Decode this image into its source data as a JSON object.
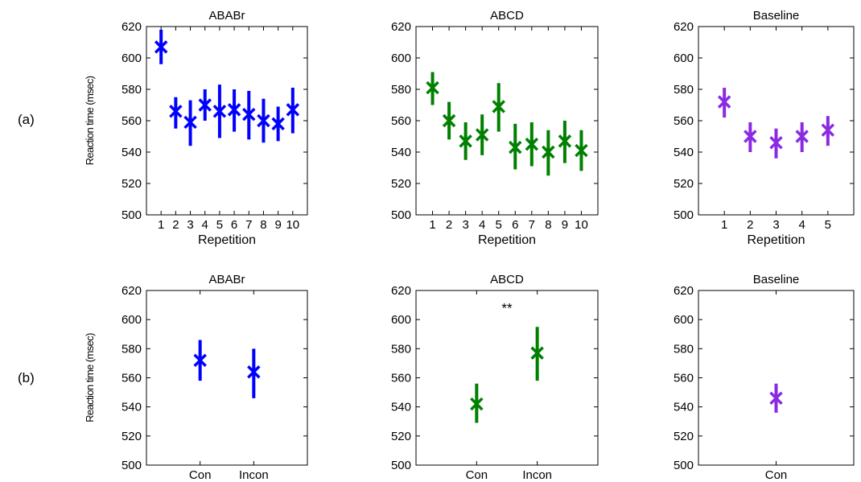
{
  "row_labels": [
    "(a)",
    "(b)"
  ],
  "colors": {
    "ABABr": "#0000ff",
    "ABCD": "#008000",
    "Baseline": "#8a2be2"
  },
  "chart_data": [
    {
      "type": "scatter",
      "title": "ABABr",
      "xlabel": "Repetition",
      "ylabel": "Reaction time (msec)",
      "ylim": [
        500,
        620
      ],
      "yticks": [
        500,
        520,
        540,
        560,
        580,
        600,
        620
      ],
      "xlim": [
        0,
        11
      ],
      "categories": [
        "1",
        "2",
        "3",
        "4",
        "5",
        "6",
        "7",
        "8",
        "9",
        "10"
      ],
      "x": [
        1,
        2,
        3,
        4,
        5,
        6,
        7,
        8,
        9,
        10
      ],
      "series": [
        {
          "values": [
            607,
            566,
            559,
            570,
            566,
            567,
            564,
            560,
            558,
            567
          ],
          "lower": [
            596,
            555,
            544,
            560,
            549,
            553,
            548,
            546,
            547,
            552
          ],
          "upper": [
            618,
            575,
            573,
            580,
            583,
            580,
            579,
            574,
            569,
            581
          ]
        }
      ],
      "color": "#0000ff",
      "marker": "asterisk",
      "grid": false
    },
    {
      "type": "scatter",
      "title": "ABCD",
      "xlabel": "Repetition",
      "ylabel": "",
      "ylim": [
        500,
        620
      ],
      "yticks": [
        500,
        520,
        540,
        560,
        580,
        600,
        620
      ],
      "xlim": [
        0,
        11
      ],
      "categories": [
        "1",
        "2",
        "3",
        "4",
        "5",
        "6",
        "7",
        "8",
        "9",
        "10"
      ],
      "x": [
        1,
        2,
        3,
        4,
        5,
        6,
        7,
        8,
        9,
        10
      ],
      "series": [
        {
          "values": [
            581,
            560,
            547,
            551,
            569,
            543,
            545,
            540,
            547,
            541
          ],
          "lower": [
            570,
            548,
            535,
            538,
            553,
            529,
            531,
            525,
            533,
            528
          ],
          "upper": [
            591,
            572,
            559,
            564,
            584,
            558,
            559,
            554,
            560,
            554
          ]
        }
      ],
      "color": "#008000",
      "marker": "asterisk",
      "grid": false
    },
    {
      "type": "scatter",
      "title": "Baseline",
      "xlabel": "Repetition",
      "ylabel": "",
      "ylim": [
        500,
        620
      ],
      "yticks": [
        500,
        520,
        540,
        560,
        580,
        600,
        620
      ],
      "xlim": [
        0,
        6
      ],
      "categories": [
        "1",
        "2",
        "3",
        "4",
        "5"
      ],
      "x": [
        1,
        2,
        3,
        4,
        5
      ],
      "series": [
        {
          "values": [
            572,
            550,
            546,
            550,
            554
          ],
          "lower": [
            562,
            540,
            536,
            540,
            544
          ],
          "upper": [
            581,
            559,
            555,
            559,
            563
          ]
        }
      ],
      "color": "#8a2be2",
      "marker": "asterisk",
      "grid": false
    },
    {
      "type": "scatter",
      "title": "ABABr",
      "xlabel": "",
      "ylabel": "Reaction time (msec)",
      "ylim": [
        500,
        620
      ],
      "yticks": [
        500,
        520,
        540,
        560,
        580,
        600,
        620
      ],
      "xlim": [
        0,
        3
      ],
      "categories": [
        "Con",
        "Incon"
      ],
      "x": [
        1,
        2
      ],
      "series": [
        {
          "values": [
            572,
            564
          ],
          "lower": [
            558,
            546
          ],
          "upper": [
            586,
            580
          ]
        }
      ],
      "color": "#0000ff",
      "marker": "asterisk",
      "grid": false
    },
    {
      "type": "scatter",
      "title": "ABCD",
      "xlabel": "",
      "ylabel": "",
      "ylim": [
        500,
        620
      ],
      "yticks": [
        500,
        520,
        540,
        560,
        580,
        600,
        620
      ],
      "xlim": [
        0,
        3
      ],
      "categories": [
        "Con",
        "Incon"
      ],
      "x": [
        1,
        2
      ],
      "series": [
        {
          "values": [
            542,
            577
          ],
          "lower": [
            529,
            558
          ],
          "upper": [
            556,
            595
          ]
        }
      ],
      "annotations": [
        {
          "text": "**",
          "x": 1.5,
          "y": 608
        }
      ],
      "color": "#008000",
      "marker": "asterisk",
      "grid": false
    },
    {
      "type": "scatter",
      "title": "Baseline",
      "xlabel": "",
      "ylabel": "",
      "ylim": [
        500,
        620
      ],
      "yticks": [
        500,
        520,
        540,
        560,
        580,
        600,
        620
      ],
      "xlim": [
        0,
        2
      ],
      "categories": [
        "Con"
      ],
      "x": [
        1
      ],
      "series": [
        {
          "values": [
            546
          ],
          "lower": [
            536
          ],
          "upper": [
            556
          ]
        }
      ],
      "color": "#8a2be2",
      "marker": "asterisk",
      "grid": false
    }
  ]
}
